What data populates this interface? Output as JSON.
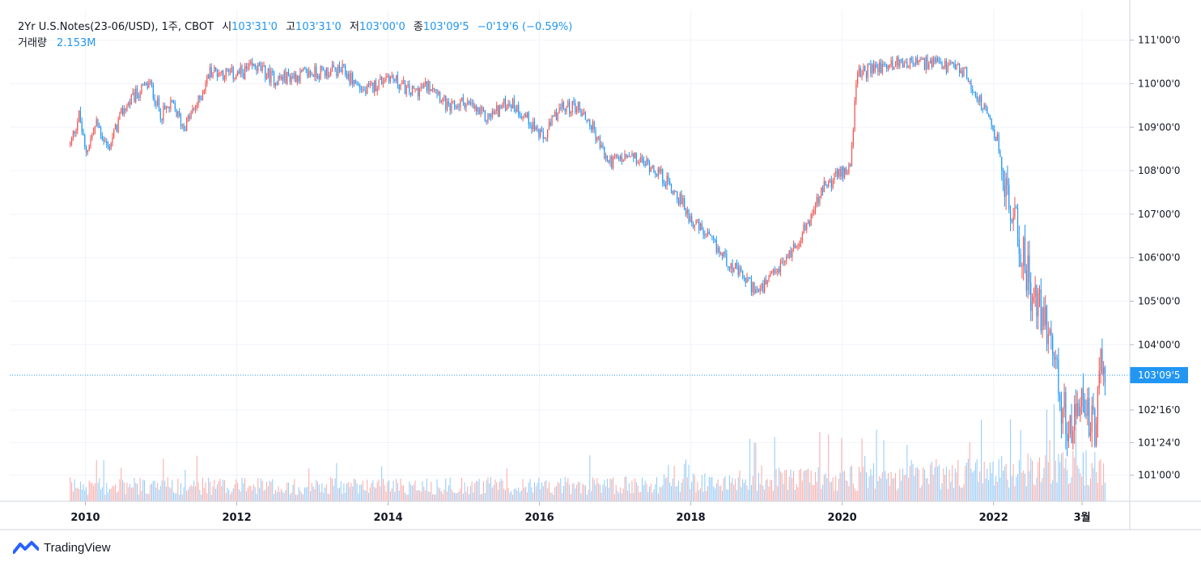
{
  "legend": {
    "symbol": "2Yr U.S.Notes(23-06/USD), 1주, CBOT",
    "open_label": "시",
    "open_value": "103'31'0",
    "high_label": "고",
    "high_value": "103'31'0",
    "low_label": "저",
    "low_value": "103'00'0",
    "close_label": "종",
    "close_value": "103'09'5",
    "change_value": "−0'19'6 (−0.59%)",
    "volume_label": "거래량",
    "volume_value": "2.153M"
  },
  "branding": {
    "name": "TradingView",
    "logo_icon": "tradingview-logo-icon"
  },
  "colors": {
    "up": "#ef5350",
    "down": "#2196f3",
    "up_volume": "#f7a9a7",
    "down_volume": "#90caf9",
    "grid": "#f0f3fa",
    "price_line": "#2196f3"
  },
  "chart_data": {
    "type": "candlestick",
    "title": "2Yr U.S.Notes(23-06/USD), 1주, CBOT",
    "interval": "1 week",
    "x_ticks": [
      "2010",
      "2012",
      "2014",
      "2016",
      "2018",
      "2020",
      "2022",
      "3월"
    ],
    "y_ticks": [
      "111'00'0",
      "110'00'0",
      "109'00'0",
      "108'00'0",
      "107'00'0",
      "106'00'0",
      "105'00'0",
      "104'00'0",
      "102'16'0",
      "101'24'0",
      "101'00'0"
    ],
    "y_axis_position": "right",
    "last_price_label": "103'09'5",
    "last_price": 103.3,
    "x_range": [
      2009.0,
      2023.8
    ],
    "y_range": [
      100.4,
      111.7
    ],
    "grid": true,
    "price_path": [
      [
        2009.8,
        108.6
      ],
      [
        2009.92,
        109.3
      ],
      [
        2010.0,
        108.4
      ],
      [
        2010.15,
        109.1
      ],
      [
        2010.3,
        108.5
      ],
      [
        2010.5,
        109.4
      ],
      [
        2010.7,
        109.8
      ],
      [
        2010.85,
        110.0
      ],
      [
        2011.0,
        109.3
      ],
      [
        2011.15,
        109.5
      ],
      [
        2011.3,
        109.0
      ],
      [
        2011.5,
        109.6
      ],
      [
        2011.65,
        110.3
      ],
      [
        2012.0,
        110.2
      ],
      [
        2012.25,
        110.4
      ],
      [
        2012.5,
        110.1
      ],
      [
        2013.0,
        110.25
      ],
      [
        2013.4,
        110.3
      ],
      [
        2013.7,
        109.8
      ],
      [
        2014.0,
        110.2
      ],
      [
        2014.3,
        109.8
      ],
      [
        2014.6,
        110.0
      ],
      [
        2014.8,
        109.4
      ],
      [
        2015.0,
        109.6
      ],
      [
        2015.3,
        109.2
      ],
      [
        2015.6,
        109.6
      ],
      [
        2015.9,
        109.1
      ],
      [
        2016.05,
        108.7
      ],
      [
        2016.25,
        109.4
      ],
      [
        2016.5,
        109.5
      ],
      [
        2016.7,
        109.0
      ],
      [
        2016.9,
        108.2
      ],
      [
        2017.2,
        108.3
      ],
      [
        2017.5,
        108.1
      ],
      [
        2017.8,
        107.5
      ],
      [
        2018.0,
        106.9
      ],
      [
        2018.3,
        106.3
      ],
      [
        2018.6,
        105.7
      ],
      [
        2018.9,
        105.2
      ],
      [
        2019.1,
        105.6
      ],
      [
        2019.35,
        106.2
      ],
      [
        2019.55,
        106.8
      ],
      [
        2019.75,
        107.6
      ],
      [
        2019.95,
        107.9
      ],
      [
        2020.1,
        108.1
      ],
      [
        2020.2,
        110.2
      ],
      [
        2020.4,
        110.35
      ],
      [
        2020.8,
        110.5
      ],
      [
        2021.2,
        110.45
      ],
      [
        2021.6,
        110.3
      ],
      [
        2021.85,
        109.5
      ],
      [
        2022.05,
        108.7
      ],
      [
        2022.2,
        107.2
      ],
      [
        2022.4,
        106.0
      ],
      [
        2022.55,
        104.9
      ],
      [
        2022.75,
        104.4
      ],
      [
        2022.9,
        102.5
      ],
      [
        2023.05,
        102.0
      ],
      [
        2023.2,
        102.8
      ],
      [
        2023.35,
        101.8
      ],
      [
        2023.42,
        103.6
      ],
      [
        2023.48,
        103.3
      ]
    ]
  }
}
